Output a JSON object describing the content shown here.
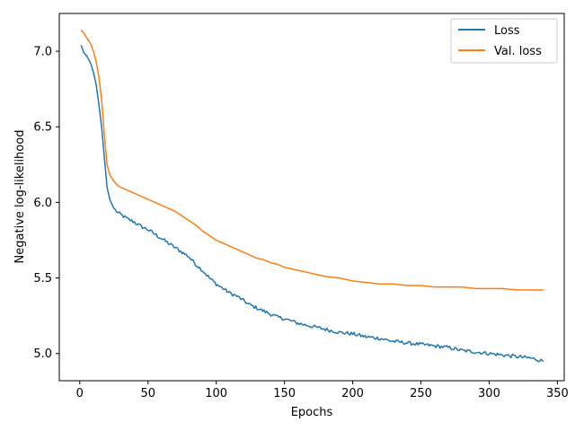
{
  "chart_data": {
    "type": "line",
    "title": "",
    "xlabel": "Epochs",
    "ylabel": "Negative log-likelihood",
    "xlim": [
      -15,
      355
    ],
    "ylim": [
      4.82,
      7.25
    ],
    "xticks": [
      0,
      50,
      100,
      150,
      200,
      250,
      300,
      350
    ],
    "yticks": [
      5.0,
      5.5,
      6.0,
      6.5,
      7.0
    ],
    "ytick_labels": [
      "5.0",
      "5.5",
      "6.0",
      "6.5",
      "7.0"
    ],
    "grid": false,
    "legend_position": "top-right",
    "series": [
      {
        "name": "Loss",
        "color": "#1f77b4",
        "noise": 0.012,
        "x": [
          1,
          3,
          5,
          8,
          10,
          12,
          14,
          16,
          18,
          20,
          22,
          25,
          28,
          30,
          35,
          40,
          45,
          50,
          55,
          60,
          65,
          70,
          75,
          80,
          85,
          90,
          95,
          100,
          105,
          110,
          115,
          120,
          125,
          130,
          135,
          140,
          145,
          150,
          160,
          170,
          180,
          190,
          200,
          210,
          220,
          230,
          240,
          250,
          260,
          270,
          280,
          290,
          300,
          310,
          320,
          330,
          340
        ],
        "y": [
          7.04,
          6.99,
          6.97,
          6.92,
          6.86,
          6.78,
          6.65,
          6.5,
          6.3,
          6.1,
          6.02,
          5.96,
          5.93,
          5.92,
          5.89,
          5.87,
          5.84,
          5.82,
          5.79,
          5.76,
          5.73,
          5.7,
          5.67,
          5.64,
          5.59,
          5.55,
          5.5,
          5.46,
          5.43,
          5.4,
          5.38,
          5.35,
          5.32,
          5.3,
          5.28,
          5.26,
          5.24,
          5.23,
          5.2,
          5.18,
          5.16,
          5.14,
          5.13,
          5.11,
          5.1,
          5.08,
          5.07,
          5.06,
          5.05,
          5.04,
          5.02,
          5.01,
          5.0,
          4.99,
          4.98,
          4.97,
          4.95
        ]
      },
      {
        "name": "Val. loss",
        "color": "#ff7f0e",
        "noise": 0.0,
        "x": [
          1,
          3,
          5,
          8,
          10,
          12,
          14,
          16,
          18,
          20,
          22,
          25,
          28,
          30,
          35,
          40,
          45,
          50,
          55,
          60,
          65,
          70,
          75,
          80,
          85,
          90,
          95,
          100,
          105,
          110,
          115,
          120,
          125,
          130,
          135,
          140,
          145,
          150,
          160,
          170,
          180,
          190,
          200,
          210,
          220,
          230,
          240,
          250,
          260,
          270,
          280,
          290,
          300,
          310,
          320,
          330,
          340
        ],
        "y": [
          7.14,
          7.12,
          7.09,
          7.05,
          7.0,
          6.93,
          6.83,
          6.68,
          6.45,
          6.25,
          6.18,
          6.14,
          6.11,
          6.1,
          6.08,
          6.06,
          6.04,
          6.02,
          6.0,
          5.98,
          5.96,
          5.94,
          5.91,
          5.88,
          5.85,
          5.81,
          5.78,
          5.75,
          5.73,
          5.71,
          5.69,
          5.67,
          5.65,
          5.63,
          5.62,
          5.6,
          5.59,
          5.57,
          5.55,
          5.53,
          5.51,
          5.5,
          5.48,
          5.47,
          5.46,
          5.46,
          5.45,
          5.45,
          5.44,
          5.44,
          5.44,
          5.43,
          5.43,
          5.43,
          5.42,
          5.42,
          5.42
        ]
      }
    ]
  }
}
